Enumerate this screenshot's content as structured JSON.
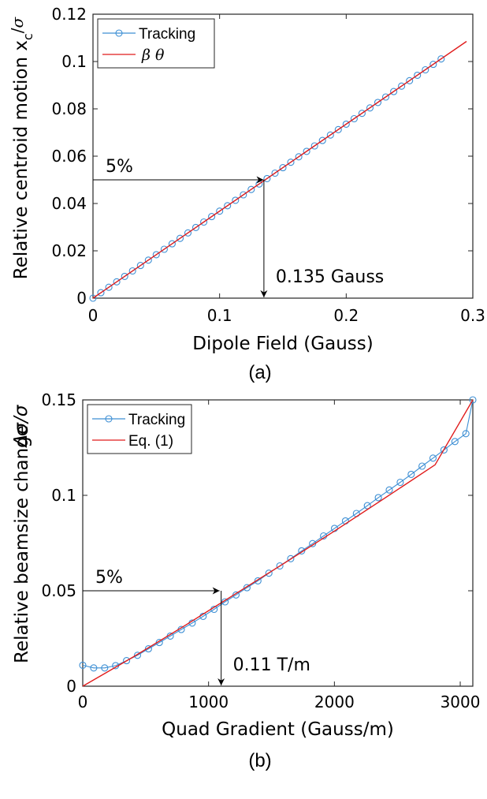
{
  "chart_data": [
    {
      "type": "line",
      "caption": "(a)",
      "xlabel": "Dipole Field (Gauss)",
      "ylabel": "Relative centroid motion x",
      "ylabel_sub": "c",
      "ylabel_tail": "/",
      "ylabel_sigma": "σ",
      "xlim": [
        0,
        0.3
      ],
      "ylim": [
        0,
        0.12
      ],
      "xticks": [
        0,
        0.1,
        0.2,
        0.3
      ],
      "xtick_labels": [
        "0",
        "0.1",
        "0.2",
        "0.3"
      ],
      "yticks": [
        0,
        0.02,
        0.04,
        0.06,
        0.08,
        0.1,
        0.12
      ],
      "ytick_labels": [
        "0",
        "0.02",
        "0.04",
        "0.06",
        "0.08",
        "0.1",
        "0.12"
      ],
      "legend_position": "top-left",
      "series": [
        {
          "name": "Tracking",
          "color": "#3d8fd4",
          "marker": "circle",
          "x_start": 0,
          "x_step": 0.00625,
          "count": 45,
          "slope": 0.3676
        },
        {
          "name": "β θ",
          "name_parts": [
            "β",
            "θ"
          ],
          "color": "#e01b1b",
          "marker": "none",
          "x": [
            0,
            0.295
          ],
          "y": [
            0,
            0.1085
          ]
        }
      ],
      "annotations": [
        {
          "text": "5%",
          "y": 0.05,
          "x_from": 0,
          "x_to": 0.136,
          "direction": "right"
        },
        {
          "text": "0.135 Gauss",
          "x": 0.135,
          "y_from": 0.05,
          "y_to": 0,
          "direction": "down"
        }
      ]
    },
    {
      "type": "line",
      "caption": "(b)",
      "xlabel": "Quad Gradient (Gauss/m)",
      "ylabel": "Relative beamsize change",
      "ylabel_delta": "Δσ/σ",
      "xlim": [
        0,
        3100
      ],
      "ylim": [
        0,
        0.15
      ],
      "xticks": [
        0,
        1000,
        2000,
        3000
      ],
      "xtick_labels": [
        "0",
        "1000",
        "2000",
        "3000"
      ],
      "yticks": [
        0,
        0.05,
        0.1,
        0.15
      ],
      "ytick_labels": [
        "0",
        "0.05",
        "0.1",
        "0.15"
      ],
      "legend_position": "top-left",
      "series": [
        {
          "name": "Tracking",
          "color": "#3d8fd4",
          "marker": "circle",
          "x": [
            0,
            87,
            174,
            261,
            348,
            435,
            522,
            609,
            696,
            783,
            870,
            957,
            1044,
            1131,
            1218,
            1305,
            1392,
            1479,
            1566,
            1653,
            1740,
            1827,
            1914,
            2001,
            2088,
            2175,
            2262,
            2349,
            2436,
            2523,
            2610,
            2697,
            2784,
            2871,
            2958,
            3045,
            3100
          ],
          "y": [
            0.011,
            0.0096,
            0.0096,
            0.0108,
            0.0134,
            0.0162,
            0.0196,
            0.0229,
            0.0263,
            0.0297,
            0.0331,
            0.0366,
            0.0403,
            0.0442,
            0.0478,
            0.0516,
            0.0552,
            0.0592,
            0.063,
            0.0668,
            0.0709,
            0.0747,
            0.0787,
            0.0827,
            0.0866,
            0.0905,
            0.0946,
            0.0988,
            0.1028,
            0.1068,
            0.111,
            0.1153,
            0.1195,
            0.1238,
            0.1282,
            0.1323,
            0.15
          ]
        },
        {
          "name": "Eq. (1)",
          "color": "#e01b1b",
          "marker": "none",
          "x": [
            0,
            400,
            800,
            1200,
            1600,
            2000,
            2400,
            2800,
            3100
          ],
          "y": [
            0,
            0.0153,
            0.0313,
            0.0478,
            0.0644,
            0.0813,
            0.0985,
            0.116,
            0.15
          ]
        }
      ],
      "annotations": [
        {
          "text": "5%",
          "y": 0.05,
          "x_from": 0,
          "x_to": 1100,
          "direction": "right"
        },
        {
          "text": "0.11 T/m",
          "x": 1100,
          "y_from": 0.05,
          "y_to": 0,
          "direction": "down"
        }
      ]
    }
  ]
}
